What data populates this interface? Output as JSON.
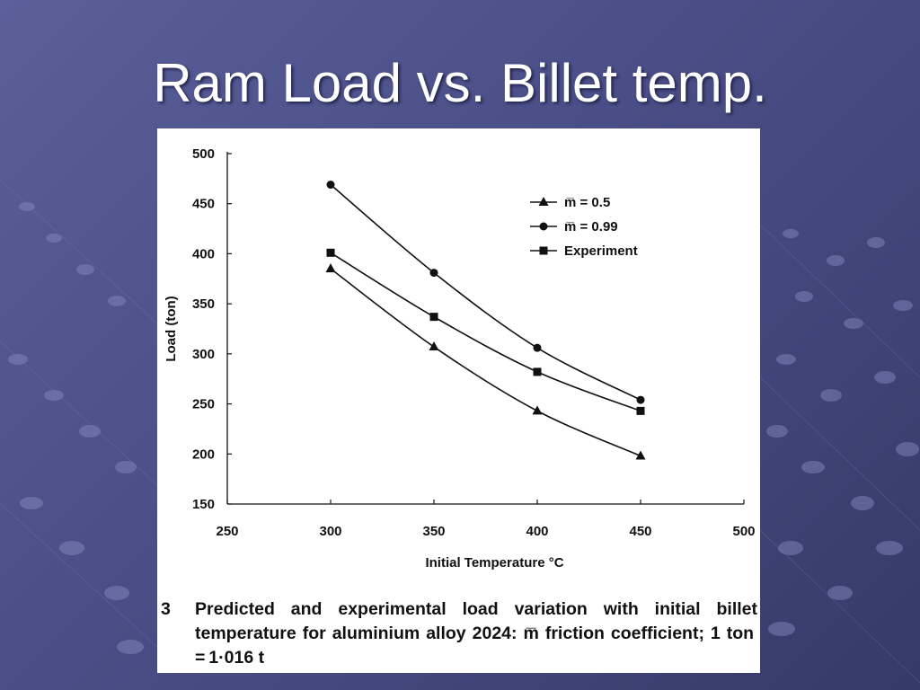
{
  "slide": {
    "title": "Ram Load vs. Billet temp."
  },
  "caption": {
    "number": "3",
    "text": "Predicted and experimental load variation with initial billet temperature for aluminium alloy 2024: m̅ friction coefficient; 1 ton = 1·016 t"
  },
  "chart_data": {
    "type": "line",
    "title": "",
    "xlabel": "Initial Temperature °C",
    "ylabel": "Load (ton)",
    "xlim": [
      250,
      500
    ],
    "ylim": [
      150,
      500
    ],
    "xticks": [
      250,
      300,
      350,
      400,
      450,
      500
    ],
    "yticks": [
      150,
      200,
      250,
      300,
      350,
      400,
      450,
      500
    ],
    "grid": false,
    "legend_position": "top-right",
    "x": [
      300,
      350,
      400,
      450
    ],
    "series": [
      {
        "name": "m̅ = 0.5",
        "marker": "triangle",
        "values": [
          385,
          307,
          243,
          198
        ]
      },
      {
        "name": "m̅ = 0.99",
        "marker": "circle",
        "values": [
          469,
          381,
          306,
          254
        ]
      },
      {
        "name": "Experiment",
        "marker": "square",
        "values": [
          401,
          337,
          282,
          243
        ]
      }
    ]
  }
}
